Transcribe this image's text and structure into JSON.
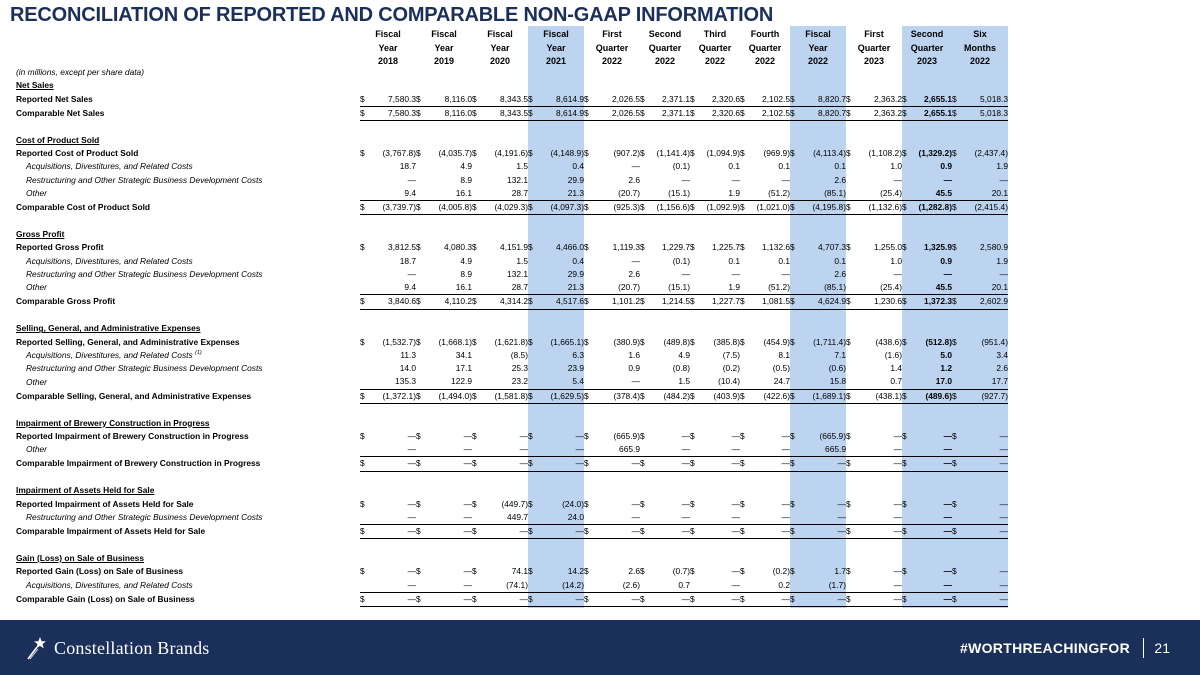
{
  "title": "RECONCILIATION OF REPORTED AND COMPARABLE NON-GAAP INFORMATION",
  "columns": [
    [
      "Fiscal",
      "Year",
      "2018"
    ],
    [
      "Fiscal",
      "Year",
      "2019"
    ],
    [
      "Fiscal",
      "Year",
      "2020"
    ],
    [
      "Fiscal",
      "Year",
      "2021"
    ],
    [
      "First",
      "Quarter",
      "2022"
    ],
    [
      "Second",
      "Quarter",
      "2022"
    ],
    [
      "Third",
      "Quarter",
      "2022"
    ],
    [
      "Fourth",
      "Quarter",
      "2022"
    ],
    [
      "Fiscal",
      "Year",
      "2022"
    ],
    [
      "First",
      "Quarter",
      "2023"
    ],
    [
      "Second",
      "Quarter",
      "2023"
    ],
    [
      "Six",
      "Months",
      "2022"
    ]
  ],
  "shade_color": "#bcd4f0",
  "rows": [
    {
      "type": "unit",
      "label": "(in millions, except per share data)"
    },
    {
      "type": "hdrrow",
      "label": "Net Sales"
    },
    {
      "type": "rep",
      "label": "Reported Net Sales",
      "dollar": true,
      "values": [
        "7,580.3",
        "8,116.0",
        "8,343.5",
        "8,614.9",
        "2,026.5",
        "2,371.1",
        "2,320.6",
        "2,102.5",
        "8,820.7",
        "2,363.2",
        "2,655.1",
        "5,018.3"
      ]
    },
    {
      "type": "cmp",
      "label": "Comparable Net Sales",
      "dollar": true,
      "values": [
        "7,580.3",
        "8,116.0",
        "8,343.5",
        "8,614.9",
        "2,026.5",
        "2,371.1",
        "2,320.6",
        "2,102.5",
        "8,820.7",
        "2,363.2",
        "2,655.1",
        "5,018.3"
      ]
    },
    {
      "type": "blank"
    },
    {
      "type": "hdrrow",
      "label": "Cost of Product Sold"
    },
    {
      "type": "rep",
      "label": "Reported Cost of Product Sold",
      "dollar": true,
      "values": [
        "(3,767.8)",
        "(4,035.7)",
        "(4,191.6)",
        "(4,148.9)",
        "(907.2)",
        "(1,141.4)",
        "(1,094.9)",
        "(969.9)",
        "(4,113.4)",
        "(1,108.2)",
        "(1,329.2)",
        "(2,437.4)"
      ]
    },
    {
      "type": "adj",
      "label": "Acquisitions, Divestitures, and Related Costs",
      "values": [
        "18.7",
        "4.9",
        "1.5",
        "0.4",
        "—",
        "(0.1)",
        "0.1",
        "0.1",
        "0.1",
        "1.0",
        "0.9",
        "1.9"
      ]
    },
    {
      "type": "adj",
      "label": "Restructuring and Other Strategic Business Development Costs",
      "values": [
        "—",
        "8.9",
        "132.1",
        "29.9",
        "2.6",
        "—",
        "—",
        "—",
        "2.6",
        "—",
        "—",
        "—"
      ]
    },
    {
      "type": "adj",
      "label": "Other",
      "values": [
        "9.4",
        "16.1",
        "28.7",
        "21.3",
        "(20.7)",
        "(15.1)",
        "1.9",
        "(51.2)",
        "(85.1)",
        "(25.4)",
        "45.5",
        "20.1"
      ]
    },
    {
      "type": "cmp",
      "label": "Comparable Cost of Product Sold",
      "dollar": true,
      "values": [
        "(3,739.7)",
        "(4,005.8)",
        "(4,029.3)",
        "(4,097.3)",
        "(925.3)",
        "(1,156.6)",
        "(1,092.9)",
        "(1,021.0)",
        "(4,195.8)",
        "(1,132.6)",
        "(1,282.8)",
        "(2,415.4)"
      ]
    },
    {
      "type": "blank"
    },
    {
      "type": "hdrrow",
      "label": "Gross Profit"
    },
    {
      "type": "rep",
      "label": "Reported Gross Profit",
      "dollar": true,
      "values": [
        "3,812.5",
        "4,080.3",
        "4,151.9",
        "4,466.0",
        "1,119.3",
        "1,229.7",
        "1,225.7",
        "1,132.6",
        "4,707.3",
        "1,255.0",
        "1,325.9",
        "2,580.9"
      ]
    },
    {
      "type": "adj",
      "label": "Acquisitions, Divestitures, and Related Costs",
      "values": [
        "18.7",
        "4.9",
        "1.5",
        "0.4",
        "—",
        "(0.1)",
        "0.1",
        "0.1",
        "0.1",
        "1.0",
        "0.9",
        "1.9"
      ]
    },
    {
      "type": "adj",
      "label": "Restructuring and Other Strategic Business Development Costs",
      "values": [
        "—",
        "8.9",
        "132.1",
        "29.9",
        "2.6",
        "—",
        "—",
        "—",
        "2.6",
        "—",
        "—",
        "—"
      ]
    },
    {
      "type": "adj",
      "label": "Other",
      "values": [
        "9.4",
        "16.1",
        "28.7",
        "21.3",
        "(20.7)",
        "(15.1)",
        "1.9",
        "(51.2)",
        "(85.1)",
        "(25.4)",
        "45.5",
        "20.1"
      ]
    },
    {
      "type": "cmp",
      "label": "Comparable Gross Profit",
      "dollar": true,
      "values": [
        "3,840.6",
        "4,110.2",
        "4,314.2",
        "4,517.6",
        "1,101.2",
        "1,214.5",
        "1,227.7",
        "1,081.5",
        "4,624.9",
        "1,230.6",
        "1,372.3",
        "2,602.9"
      ]
    },
    {
      "type": "blank"
    },
    {
      "type": "hdrrow",
      "label": "Selling, General, and Administrative Expenses"
    },
    {
      "type": "rep",
      "label": "Reported Selling, General, and Administrative Expenses",
      "dollar": true,
      "values": [
        "(1,532.7)",
        "(1,668.1)",
        "(1,621.8)",
        "(1,665.1)",
        "(380.9)",
        "(489.8)",
        "(385.8)",
        "(454.9)",
        "(1,711.4)",
        "(438.6)",
        "(512.8)",
        "(951.4)"
      ]
    },
    {
      "type": "adj",
      "label": "Acquisitions, Divestitures, and Related Costs",
      "sup": "(1)",
      "values": [
        "11.3",
        "34.1",
        "(8.5)",
        "6.3",
        "1.6",
        "4.9",
        "(7.5)",
        "8.1",
        "7.1",
        "(1.6)",
        "5.0",
        "3.4"
      ]
    },
    {
      "type": "adj",
      "label": "Restructuring and Other Strategic Business Development Costs",
      "values": [
        "14.0",
        "17.1",
        "25.3",
        "23.9",
        "0.9",
        "(0.8)",
        "(0.2)",
        "(0.5)",
        "(0.6)",
        "1.4",
        "1.2",
        "2.6"
      ]
    },
    {
      "type": "adj",
      "label": "Other",
      "values": [
        "135.3",
        "122.9",
        "23.2",
        "5.4",
        "—",
        "1.5",
        "(10.4)",
        "24.7",
        "15.8",
        "0.7",
        "17.0",
        "17.7"
      ]
    },
    {
      "type": "cmp",
      "label": "Comparable Selling, General, and Administrative Expenses",
      "dollar": true,
      "values": [
        "(1,372.1)",
        "(1,494.0)",
        "(1,581.8)",
        "(1,629.5)",
        "(378.4)",
        "(484.2)",
        "(403.9)",
        "(422.6)",
        "(1,689.1)",
        "(438.1)",
        "(489.6)",
        "(927.7)"
      ]
    },
    {
      "type": "blank"
    },
    {
      "type": "hdrrow",
      "label": "Impairment of Brewery Construction in Progress"
    },
    {
      "type": "rep",
      "label": "Reported Impairment of Brewery Construction in Progress",
      "dollar": true,
      "values": [
        "—",
        "—",
        "—",
        "—",
        "(665.9)",
        "—",
        "—",
        "—",
        "(665.9)",
        "—",
        "—",
        "—"
      ]
    },
    {
      "type": "adj",
      "label": "Other",
      "values": [
        "—",
        "—",
        "—",
        "—",
        "665.9",
        "—",
        "—",
        "—",
        "665.9",
        "—",
        "—",
        "—"
      ]
    },
    {
      "type": "cmp",
      "label": "Comparable Impairment of Brewery Construction in Progress",
      "dollar": true,
      "values": [
        "—",
        "—",
        "—",
        "—",
        "—",
        "—",
        "—",
        "—",
        "—",
        "—",
        "—",
        "—"
      ]
    },
    {
      "type": "blank"
    },
    {
      "type": "hdrrow",
      "label": "Impairment of Assets Held for Sale"
    },
    {
      "type": "rep",
      "label": "Reported Impairment of Assets Held for Sale",
      "dollar": true,
      "values": [
        "—",
        "—",
        "(449.7)",
        "(24.0)",
        "—",
        "—",
        "—",
        "—",
        "—",
        "—",
        "—",
        "—"
      ]
    },
    {
      "type": "adj",
      "label": "Restructuring and Other Strategic Business Development Costs",
      "values": [
        "—",
        "—",
        "449.7",
        "24.0",
        "—",
        "—",
        "—",
        "—",
        "—",
        "—",
        "—",
        "—"
      ]
    },
    {
      "type": "cmp",
      "label": "Comparable Impairment of Assets Held for Sale",
      "dollar": true,
      "values": [
        "—",
        "—",
        "—",
        "—",
        "—",
        "—",
        "—",
        "—",
        "—",
        "—",
        "—",
        "—"
      ]
    },
    {
      "type": "blank"
    },
    {
      "type": "hdrrow",
      "label": "Gain (Loss) on Sale of Business"
    },
    {
      "type": "rep",
      "label": "Reported Gain (Loss) on Sale of Business",
      "dollar": true,
      "values": [
        "—",
        "—",
        "74.1",
        "14.2",
        "2.6",
        "(0.7)",
        "—",
        "(0.2)",
        "1.7",
        "—",
        "—",
        "—"
      ]
    },
    {
      "type": "adj",
      "label": "Acquisitions, Divestitures, and Related Costs",
      "values": [
        "—",
        "—",
        "(74.1)",
        "(14.2)",
        "(2.6)",
        "0.7",
        "—",
        "0.2",
        "(1.7)",
        "—",
        "—",
        "—"
      ]
    },
    {
      "type": "cmp",
      "label": "Comparable Gain (Loss) on Sale of Business",
      "dollar": true,
      "values": [
        "—",
        "—",
        "—",
        "—",
        "—",
        "—",
        "—",
        "—",
        "—",
        "—",
        "—",
        "—"
      ]
    }
  ],
  "footer": {
    "brand": "Constellation Brands",
    "hashtag": "#WORTHREACHINGFOR",
    "page_number": "21",
    "bg_color": "#1b2f5b"
  }
}
